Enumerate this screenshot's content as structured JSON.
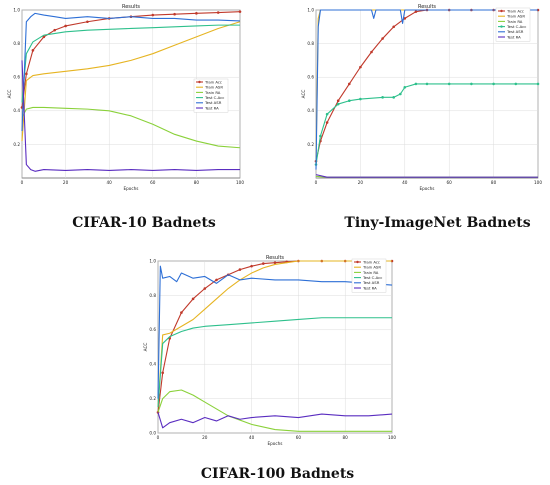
{
  "captions": [
    "CIFAR-10 Badnets",
    "Tiny-ImageNet Badnets",
    "CIFAR-100 Badnets"
  ],
  "chart_data": [
    {
      "type": "line",
      "title": "Results",
      "xlabel": "Epochs",
      "ylabel": "ACC",
      "xlim": [
        0,
        100
      ],
      "ylim": [
        0,
        1.0
      ],
      "x_ticks": [
        0,
        20,
        40,
        60,
        80,
        100
      ],
      "y_ticks": [
        0.2,
        0.4,
        0.6,
        0.8,
        1.0
      ],
      "legend": "center-right",
      "grid": true,
      "series": [
        {
          "name": "Train Acc",
          "color": "#c0392b",
          "marker": true,
          "x": [
            0,
            2,
            5,
            10,
            15,
            20,
            30,
            40,
            50,
            60,
            70,
            80,
            90,
            100
          ],
          "y": [
            0.42,
            0.62,
            0.76,
            0.84,
            0.88,
            0.905,
            0.93,
            0.95,
            0.96,
            0.97,
            0.975,
            0.98,
            0.985,
            0.99
          ]
        },
        {
          "name": "Train ASR",
          "color": "#e6b422",
          "x": [
            0,
            2,
            5,
            10,
            20,
            30,
            40,
            50,
            60,
            70,
            80,
            90,
            100
          ],
          "y": [
            0.22,
            0.58,
            0.61,
            0.62,
            0.635,
            0.65,
            0.67,
            0.7,
            0.74,
            0.79,
            0.84,
            0.89,
            0.93
          ]
        },
        {
          "name": "Train RA",
          "color": "#8ad13a",
          "x": [
            0,
            2,
            5,
            10,
            20,
            30,
            40,
            50,
            60,
            70,
            80,
            90,
            100
          ],
          "y": [
            0.36,
            0.41,
            0.42,
            0.42,
            0.415,
            0.41,
            0.4,
            0.37,
            0.32,
            0.26,
            0.22,
            0.19,
            0.18
          ]
        },
        {
          "name": "Test C-Acc",
          "color": "#2ec08c",
          "x": [
            0,
            2,
            5,
            10,
            20,
            30,
            40,
            50,
            60,
            70,
            80,
            90,
            100
          ],
          "y": [
            0.45,
            0.74,
            0.81,
            0.85,
            0.87,
            0.88,
            0.885,
            0.89,
            0.895,
            0.9,
            0.905,
            0.91,
            0.91
          ]
        },
        {
          "name": "Test ASR",
          "color": "#2d6fd6",
          "x": [
            0,
            2,
            4,
            6,
            10,
            15,
            20,
            30,
            40,
            50,
            60,
            70,
            80,
            90,
            100
          ],
          "y": [
            0.28,
            0.93,
            0.96,
            0.98,
            0.97,
            0.96,
            0.95,
            0.96,
            0.95,
            0.96,
            0.95,
            0.95,
            0.94,
            0.94,
            0.935
          ]
        },
        {
          "name": "Test RA",
          "color": "#5a2dc0",
          "x": [
            0,
            2,
            4,
            6,
            10,
            20,
            30,
            40,
            50,
            60,
            70,
            80,
            90,
            100
          ],
          "y": [
            0.7,
            0.08,
            0.05,
            0.04,
            0.05,
            0.045,
            0.05,
            0.045,
            0.05,
            0.045,
            0.05,
            0.045,
            0.05,
            0.05
          ]
        }
      ]
    },
    {
      "type": "line",
      "title": "Results",
      "xlabel": "Epochs",
      "ylabel": "ACC",
      "xlim": [
        0,
        100
      ],
      "ylim": [
        0,
        1.0
      ],
      "x_ticks": [
        0,
        20,
        40,
        60,
        80,
        100
      ],
      "y_ticks": [
        0.2,
        0.4,
        0.6,
        0.8,
        1.0
      ],
      "legend": "top-right",
      "grid": true,
      "series": [
        {
          "name": "Train Acc",
          "color": "#c0392b",
          "marker": true,
          "x": [
            0,
            2,
            5,
            10,
            15,
            20,
            25,
            30,
            35,
            40,
            45,
            50,
            60,
            70,
            80,
            90,
            100
          ],
          "y": [
            0.1,
            0.22,
            0.33,
            0.46,
            0.56,
            0.66,
            0.75,
            0.83,
            0.9,
            0.95,
            0.99,
            1.0,
            1.0,
            1.0,
            1.0,
            1.0,
            1.0
          ]
        },
        {
          "name": "Train ASR",
          "color": "#e6b422",
          "x": [
            0,
            1,
            2,
            5,
            10,
            20,
            30,
            40,
            50,
            60,
            70,
            80,
            90,
            100
          ],
          "y": [
            0.1,
            0.95,
            1.0,
            1.0,
            1.0,
            1.0,
            1.0,
            1.0,
            1.0,
            1.0,
            1.0,
            1.0,
            1.0,
            1.0
          ]
        },
        {
          "name": "Train RA",
          "color": "#8ad13a",
          "x": [
            0,
            5,
            10,
            20,
            30,
            40,
            50,
            60,
            70,
            80,
            90,
            100
          ],
          "y": [
            0.01,
            0.005,
            0.005,
            0.005,
            0.005,
            0.005,
            0.005,
            0.005,
            0.005,
            0.005,
            0.005,
            0.005
          ]
        },
        {
          "name": "Test C-Acc",
          "color": "#2ec08c",
          "marker": true,
          "x": [
            0,
            2,
            5,
            10,
            15,
            20,
            30,
            35,
            38,
            40,
            45,
            50,
            60,
            70,
            80,
            90,
            100
          ],
          "y": [
            0.08,
            0.25,
            0.38,
            0.44,
            0.46,
            0.47,
            0.48,
            0.48,
            0.5,
            0.54,
            0.56,
            0.56,
            0.56,
            0.56,
            0.56,
            0.56,
            0.56
          ]
        },
        {
          "name": "Test ASR",
          "color": "#2d6fd6",
          "x": [
            0,
            1,
            2,
            5,
            10,
            20,
            25,
            26,
            27,
            30,
            38,
            39,
            40,
            45,
            50,
            60,
            70,
            80,
            90,
            100
          ],
          "y": [
            0.05,
            0.9,
            1.0,
            1.0,
            1.0,
            1.0,
            1.0,
            0.95,
            1.0,
            1.0,
            1.0,
            0.92,
            1.0,
            1.0,
            1.0,
            1.0,
            1.0,
            1.0,
            1.0,
            1.0
          ]
        },
        {
          "name": "Test RA",
          "color": "#5a2dc0",
          "x": [
            0,
            5,
            10,
            20,
            30,
            40,
            50,
            60,
            70,
            80,
            90,
            100
          ],
          "y": [
            0.02,
            0.005,
            0.005,
            0.005,
            0.005,
            0.005,
            0.005,
            0.005,
            0.005,
            0.005,
            0.005,
            0.005
          ]
        }
      ]
    },
    {
      "type": "line",
      "title": "Results",
      "xlabel": "Epochs",
      "ylabel": "ACC",
      "xlim": [
        0,
        100
      ],
      "ylim": [
        0,
        1.0
      ],
      "x_ticks": [
        0,
        20,
        40,
        60,
        80,
        100
      ],
      "y_ticks": [
        0.0,
        0.2,
        0.4,
        0.6,
        0.8,
        1.0
      ],
      "legend": "top-right",
      "grid": true,
      "series": [
        {
          "name": "Train Acc",
          "color": "#c0392b",
          "marker": true,
          "x": [
            0,
            2,
            5,
            10,
            15,
            20,
            25,
            30,
            35,
            40,
            45,
            50,
            55,
            60,
            70,
            80,
            90,
            100
          ],
          "y": [
            0.12,
            0.35,
            0.55,
            0.7,
            0.78,
            0.84,
            0.89,
            0.92,
            0.95,
            0.97,
            0.985,
            0.99,
            0.995,
            1.0,
            1.0,
            1.0,
            1.0,
            1.0
          ]
        },
        {
          "name": "Train ASR",
          "color": "#e6b422",
          "x": [
            0,
            2,
            5,
            10,
            15,
            20,
            25,
            30,
            35,
            40,
            45,
            50,
            55,
            60,
            70,
            80,
            90,
            100
          ],
          "y": [
            0.15,
            0.57,
            0.58,
            0.62,
            0.66,
            0.72,
            0.78,
            0.84,
            0.89,
            0.93,
            0.96,
            0.98,
            0.99,
            1.0,
            1.0,
            1.0,
            1.0,
            1.0
          ]
        },
        {
          "name": "Train RA",
          "color": "#8ad13a",
          "x": [
            0,
            2,
            5,
            10,
            15,
            20,
            25,
            30,
            40,
            50,
            60,
            70,
            80,
            90,
            100
          ],
          "y": [
            0.12,
            0.2,
            0.24,
            0.25,
            0.22,
            0.18,
            0.14,
            0.1,
            0.05,
            0.02,
            0.01,
            0.01,
            0.01,
            0.01,
            0.01
          ]
        },
        {
          "name": "Test C-Acc",
          "color": "#2ec08c",
          "x": [
            0,
            2,
            5,
            10,
            15,
            20,
            30,
            40,
            50,
            60,
            70,
            80,
            90,
            100
          ],
          "y": [
            0.15,
            0.52,
            0.56,
            0.59,
            0.61,
            0.62,
            0.63,
            0.64,
            0.65,
            0.66,
            0.67,
            0.67,
            0.67,
            0.67
          ]
        },
        {
          "name": "Test ASR",
          "color": "#2d6fd6",
          "x": [
            0,
            1,
            2,
            5,
            8,
            10,
            15,
            20,
            25,
            30,
            35,
            40,
            50,
            60,
            70,
            80,
            90,
            100
          ],
          "y": [
            0.2,
            0.97,
            0.9,
            0.91,
            0.88,
            0.93,
            0.9,
            0.91,
            0.87,
            0.92,
            0.89,
            0.9,
            0.89,
            0.89,
            0.88,
            0.88,
            0.87,
            0.86
          ]
        },
        {
          "name": "Test RA",
          "color": "#5a2dc0",
          "x": [
            0,
            2,
            5,
            10,
            15,
            20,
            25,
            30,
            35,
            40,
            50,
            60,
            70,
            80,
            90,
            100
          ],
          "y": [
            0.12,
            0.03,
            0.06,
            0.08,
            0.06,
            0.09,
            0.07,
            0.1,
            0.08,
            0.09,
            0.1,
            0.09,
            0.11,
            0.1,
            0.1,
            0.11
          ]
        }
      ]
    }
  ]
}
